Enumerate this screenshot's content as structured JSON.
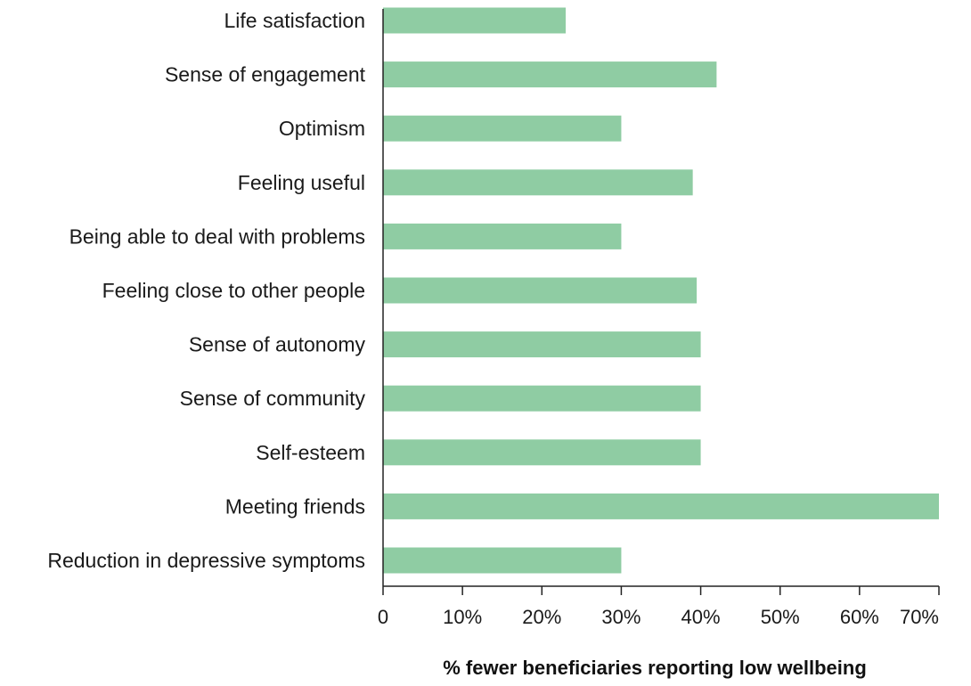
{
  "chart_data": {
    "type": "bar",
    "orientation": "horizontal",
    "title": "",
    "xlabel": "% fewer beneficiaries reporting low wellbeing",
    "ylabel": "",
    "categories": [
      "Life satisfaction",
      "Sense of engagement",
      "Optimism",
      "Feeling useful",
      "Being able to deal with problems",
      "Feeling close to other people",
      "Sense of autonomy",
      "Sense of community",
      "Self-esteem",
      "Meeting friends",
      "Reduction in depressive symptoms"
    ],
    "values": [
      23,
      42,
      30,
      39,
      30,
      39.5,
      40,
      40,
      40,
      70,
      30
    ],
    "xlim": [
      0,
      70
    ],
    "x_ticks": [
      0,
      10,
      20,
      30,
      40,
      50,
      60,
      70
    ],
    "x_tick_labels": [
      "0",
      "10%",
      "20%",
      "30%",
      "40%",
      "50%",
      "60%",
      "70%"
    ],
    "bar_color": "#8fcca3",
    "axis_color": "#222222",
    "grid": false,
    "legend": "none"
  }
}
